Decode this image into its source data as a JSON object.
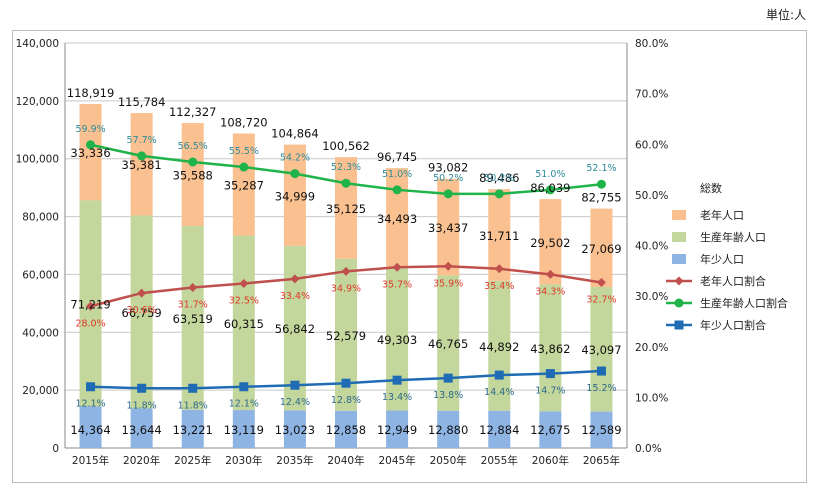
{
  "unit_label": "単位:人",
  "chart_data": {
    "type": "bar",
    "stacked": true,
    "categories": [
      "2015年",
      "2020年",
      "2025年",
      "2030年",
      "2035年",
      "2040年",
      "2045年",
      "2050年",
      "2055年",
      "2060年",
      "2065年"
    ],
    "bar_series": [
      {
        "name": "年少人口",
        "color": "#8eb4e3",
        "values": [
          14364,
          13644,
          13221,
          13119,
          13023,
          12858,
          12949,
          12880,
          12884,
          12675,
          12589
        ]
      },
      {
        "name": "生産年齢人口",
        "color": "#c3d69b",
        "values": [
          71219,
          66759,
          63519,
          60315,
          56842,
          52579,
          49303,
          46765,
          44892,
          43862,
          43097
        ]
      },
      {
        "name": "老年人口",
        "color": "#fac090",
        "values": [
          33336,
          35381,
          35588,
          35287,
          34999,
          35125,
          34493,
          33437,
          31711,
          29502,
          27069
        ]
      }
    ],
    "totals": [
      "118,919",
      "115,784",
      "112,327",
      "108,720",
      "104,864",
      "100,562",
      "96,745",
      "93,082",
      "89,486",
      "86,039",
      "82,755"
    ],
    "line_series": [
      {
        "name": "老年人口割合",
        "color": "#c0504d",
        "label_color": "#e03a2c",
        "marker": "diamond",
        "values": [
          28.0,
          30.6,
          31.7,
          32.5,
          33.4,
          34.9,
          35.7,
          35.9,
          35.4,
          34.3,
          32.7
        ],
        "labels": [
          "28.0%",
          "30.6%",
          "31.7%",
          "32.5%",
          "33.4%",
          "34.9%",
          "35.7%",
          "35.9%",
          "35.4%",
          "34.3%",
          "32.7%"
        ]
      },
      {
        "name": "生産年齢人口割合",
        "color": "#1fb34a",
        "label_color": "#2e8b9a",
        "marker": "circle",
        "values": [
          59.9,
          57.7,
          56.5,
          55.5,
          54.2,
          52.3,
          51.0,
          50.2,
          50.2,
          51.0,
          52.1
        ],
        "labels": [
          "59.9%",
          "57.7%",
          "56.5%",
          "55.5%",
          "54.2%",
          "52.3%",
          "51.0%",
          "50.2%",
          "50.2%",
          "51.0%",
          "52.1%"
        ]
      },
      {
        "name": "年少人口割合",
        "color": "#1f6cb4",
        "label_color": "#2e6a8a",
        "marker": "square",
        "values": [
          12.1,
          11.8,
          11.8,
          12.1,
          12.4,
          12.8,
          13.4,
          13.8,
          14.4,
          14.7,
          15.2
        ],
        "labels": [
          "12.1%",
          "11.8%",
          "11.8%",
          "12.1%",
          "12.4%",
          "12.8%",
          "13.4%",
          "13.8%",
          "14.4%",
          "14.7%",
          "15.2%"
        ]
      }
    ],
    "y_left": {
      "min": 0,
      "max": 140000,
      "ticks": [
        "0",
        "20,000",
        "40,000",
        "60,000",
        "80,000",
        "100,000",
        "120,000",
        "140,000"
      ]
    },
    "y_right": {
      "min": 0,
      "max": 80,
      "ticks": [
        "0.0%",
        "10.0%",
        "20.0%",
        "30.0%",
        "40.0%",
        "50.0%",
        "60.0%",
        "70.0%",
        "80.0%"
      ]
    },
    "legend": {
      "title": "総数",
      "position": "right"
    },
    "grid": true
  }
}
